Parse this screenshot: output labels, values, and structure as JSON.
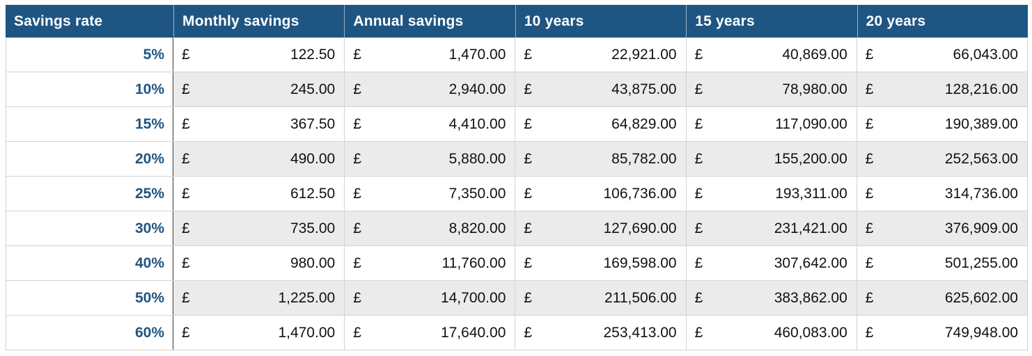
{
  "table": {
    "title": "savings-projection-table",
    "currency_symbol": "£",
    "columns": [
      {
        "label": "Savings rate"
      },
      {
        "label": "Monthly savings"
      },
      {
        "label": "Annual savings"
      },
      {
        "label": "10 years"
      },
      {
        "label": "15 years"
      },
      {
        "label": "20 years"
      }
    ],
    "rows": [
      {
        "rate": "5%",
        "monthly": "122.50",
        "annual": "1,470.00",
        "ten_years": "22,921.00",
        "fifteen_years": "40,869.00",
        "twenty_years": "66,043.00"
      },
      {
        "rate": "10%",
        "monthly": "245.00",
        "annual": "2,940.00",
        "ten_years": "43,875.00",
        "fifteen_years": "78,980.00",
        "twenty_years": "128,216.00"
      },
      {
        "rate": "15%",
        "monthly": "367.50",
        "annual": "4,410.00",
        "ten_years": "64,829.00",
        "fifteen_years": "117,090.00",
        "twenty_years": "190,389.00"
      },
      {
        "rate": "20%",
        "monthly": "490.00",
        "annual": "5,880.00",
        "ten_years": "85,782.00",
        "fifteen_years": "155,200.00",
        "twenty_years": "252,563.00"
      },
      {
        "rate": "25%",
        "monthly": "612.50",
        "annual": "7,350.00",
        "ten_years": "106,736.00",
        "fifteen_years": "193,311.00",
        "twenty_years": "314,736.00"
      },
      {
        "rate": "30%",
        "monthly": "735.00",
        "annual": "8,820.00",
        "ten_years": "127,690.00",
        "fifteen_years": "231,421.00",
        "twenty_years": "376,909.00"
      },
      {
        "rate": "40%",
        "monthly": "980.00",
        "annual": "11,760.00",
        "ten_years": "169,598.00",
        "fifteen_years": "307,642.00",
        "twenty_years": "501,255.00"
      },
      {
        "rate": "50%",
        "monthly": "1,225.00",
        "annual": "14,700.00",
        "ten_years": "211,506.00",
        "fifteen_years": "383,862.00",
        "twenty_years": "625,602.00"
      },
      {
        "rate": "60%",
        "monthly": "1,470.00",
        "annual": "17,640.00",
        "ten_years": "253,413.00",
        "fifteen_years": "460,083.00",
        "twenty_years": "749,948.00"
      }
    ],
    "colors": {
      "header_bg": "#1F5582",
      "header_text": "#FFFFFF",
      "rate_text": "#1F5582",
      "stripe_bg": "#EBEBEB",
      "row_border": "#D3D3D3",
      "rate_divider": "#3A3A3A",
      "value_text": "#111111"
    }
  }
}
